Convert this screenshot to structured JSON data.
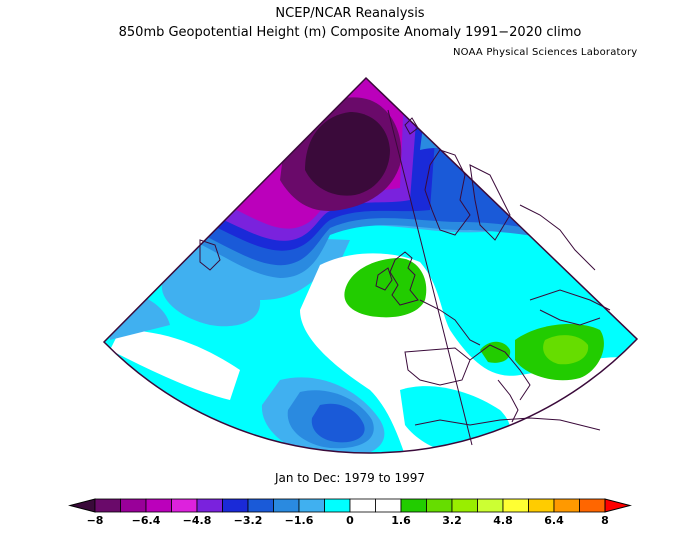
{
  "title": "NCEP/NCAR Reanalysis",
  "subtitle": "850mb Geopotential Height (m) Composite Anomaly 1991−2020 climo",
  "credit": "NOAA Physical Sciences Laboratory",
  "period": "Jan to Dec: 1979 to 1997",
  "colorbar": {
    "colors": [
      "#3a0a3a",
      "#6a0a6a",
      "#990099",
      "#bb00bb",
      "#dd22dd",
      "#7a22dd",
      "#1a2ad8",
      "#1a5ad8",
      "#2a8ae0",
      "#40b0f0",
      "#00ffff",
      "#ffffff",
      "#ffffff",
      "#22cc00",
      "#66dd00",
      "#99ee00",
      "#ccff33",
      "#ffff33",
      "#ffcc00",
      "#ff9900",
      "#ff6600",
      "#ff0000"
    ],
    "ticks": [
      "−8",
      "−6.4",
      "−4.8",
      "−3.2",
      "−1.6",
      "0",
      "1.6",
      "3.2",
      "4.8",
      "6.4",
      "8"
    ]
  }
}
